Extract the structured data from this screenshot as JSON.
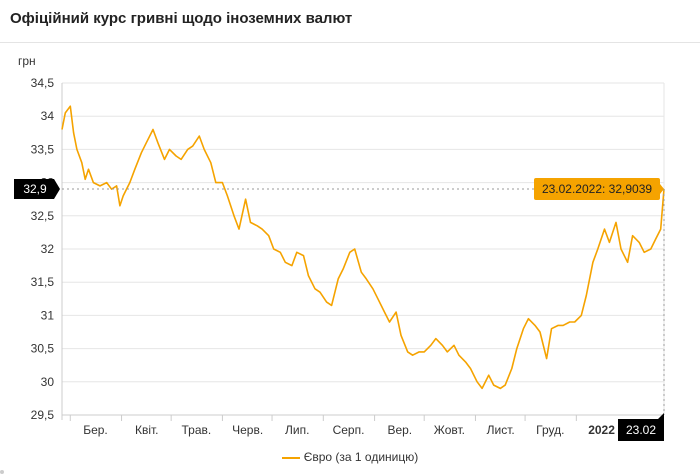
{
  "page_title": "Офіційний курс гривні щодо іноземних валют",
  "colors": {
    "series": "#f5a300",
    "grid": "#e6e6e6",
    "flag_bg": "#000000"
  },
  "chart_data": {
    "type": "line",
    "title": "Офіційний курс гривні щодо іноземних валют",
    "ylabel": "грн",
    "ylim": [
      29.5,
      34.5
    ],
    "yticks": [
      29.5,
      30,
      30.5,
      31,
      31.5,
      32,
      32.5,
      33,
      33.5,
      34,
      34.5
    ],
    "ytick_labels": [
      "29,5",
      "30",
      "30,5",
      "31",
      "31,5",
      "32",
      "32,5",
      "33",
      "33,5",
      "34",
      "34,5"
    ],
    "x_range": [
      "2021-02-24",
      "2022-02-23"
    ],
    "xticks": [
      {
        "label": "Бер.",
        "date": "2021-03-01",
        "bold": false
      },
      {
        "label": "Квіт.",
        "date": "2021-04-01",
        "bold": false
      },
      {
        "label": "Трав.",
        "date": "2021-05-01",
        "bold": false
      },
      {
        "label": "Черв.",
        "date": "2021-06-01",
        "bold": false
      },
      {
        "label": "Лип.",
        "date": "2021-07-01",
        "bold": false
      },
      {
        "label": "Серп.",
        "date": "2021-08-01",
        "bold": false
      },
      {
        "label": "Вер.",
        "date": "2021-09-01",
        "bold": false
      },
      {
        "label": "Жовт.",
        "date": "2021-10-01",
        "bold": false
      },
      {
        "label": "Лист.",
        "date": "2021-11-01",
        "bold": false
      },
      {
        "label": "Груд.",
        "date": "2021-12-01",
        "bold": false
      },
      {
        "label": "2022",
        "date": "2022-01-01",
        "bold": true
      }
    ],
    "grid": true,
    "legend_position": "bottom-center",
    "series": [
      {
        "name": "Євро (за 1 одиницю)",
        "color": "#f5a300",
        "points": [
          [
            "2021-02-24",
            33.8
          ],
          [
            "2021-02-26",
            34.05
          ],
          [
            "2021-03-01",
            34.15
          ],
          [
            "2021-03-03",
            33.75
          ],
          [
            "2021-03-05",
            33.5
          ],
          [
            "2021-03-08",
            33.3
          ],
          [
            "2021-03-10",
            33.05
          ],
          [
            "2021-03-12",
            33.2
          ],
          [
            "2021-03-15",
            33.0
          ],
          [
            "2021-03-19",
            32.95
          ],
          [
            "2021-03-23",
            33.0
          ],
          [
            "2021-03-26",
            32.9
          ],
          [
            "2021-03-29",
            32.95
          ],
          [
            "2021-03-31",
            32.65
          ],
          [
            "2021-04-02",
            32.8
          ],
          [
            "2021-04-06",
            33.0
          ],
          [
            "2021-04-09",
            33.2
          ],
          [
            "2021-04-13",
            33.45
          ],
          [
            "2021-04-16",
            33.6
          ],
          [
            "2021-04-20",
            33.8
          ],
          [
            "2021-04-23",
            33.6
          ],
          [
            "2021-04-27",
            33.35
          ],
          [
            "2021-04-30",
            33.5
          ],
          [
            "2021-05-04",
            33.4
          ],
          [
            "2021-05-07",
            33.35
          ],
          [
            "2021-05-11",
            33.5
          ],
          [
            "2021-05-14",
            33.55
          ],
          [
            "2021-05-18",
            33.7
          ],
          [
            "2021-05-21",
            33.5
          ],
          [
            "2021-05-25",
            33.3
          ],
          [
            "2021-05-28",
            33.0
          ],
          [
            "2021-06-01",
            33.0
          ],
          [
            "2021-06-04",
            32.8
          ],
          [
            "2021-06-08",
            32.5
          ],
          [
            "2021-06-11",
            32.3
          ],
          [
            "2021-06-15",
            32.75
          ],
          [
            "2021-06-18",
            32.4
          ],
          [
            "2021-06-22",
            32.35
          ],
          [
            "2021-06-25",
            32.3
          ],
          [
            "2021-06-29",
            32.2
          ],
          [
            "2021-07-02",
            32.0
          ],
          [
            "2021-07-06",
            31.95
          ],
          [
            "2021-07-09",
            31.8
          ],
          [
            "2021-07-13",
            31.75
          ],
          [
            "2021-07-16",
            31.95
          ],
          [
            "2021-07-20",
            31.9
          ],
          [
            "2021-07-23",
            31.6
          ],
          [
            "2021-07-27",
            31.4
          ],
          [
            "2021-07-30",
            31.35
          ],
          [
            "2021-08-03",
            31.2
          ],
          [
            "2021-08-06",
            31.15
          ],
          [
            "2021-08-10",
            31.55
          ],
          [
            "2021-08-13",
            31.7
          ],
          [
            "2021-08-17",
            31.95
          ],
          [
            "2021-08-20",
            32.0
          ],
          [
            "2021-08-24",
            31.65
          ],
          [
            "2021-08-27",
            31.55
          ],
          [
            "2021-08-31",
            31.4
          ],
          [
            "2021-09-03",
            31.25
          ],
          [
            "2021-09-07",
            31.05
          ],
          [
            "2021-09-10",
            30.9
          ],
          [
            "2021-09-14",
            31.05
          ],
          [
            "2021-09-17",
            30.7
          ],
          [
            "2021-09-21",
            30.45
          ],
          [
            "2021-09-24",
            30.4
          ],
          [
            "2021-09-28",
            30.45
          ],
          [
            "2021-10-01",
            30.45
          ],
          [
            "2021-10-05",
            30.55
          ],
          [
            "2021-10-08",
            30.65
          ],
          [
            "2021-10-12",
            30.55
          ],
          [
            "2021-10-15",
            30.45
          ],
          [
            "2021-10-19",
            30.55
          ],
          [
            "2021-10-22",
            30.4
          ],
          [
            "2021-10-26",
            30.3
          ],
          [
            "2021-10-29",
            30.2
          ],
          [
            "2021-11-02",
            30.0
          ],
          [
            "2021-11-05",
            29.9
          ],
          [
            "2021-11-09",
            30.1
          ],
          [
            "2021-11-12",
            29.95
          ],
          [
            "2021-11-16",
            29.9
          ],
          [
            "2021-11-19",
            29.95
          ],
          [
            "2021-11-23",
            30.2
          ],
          [
            "2021-11-26",
            30.5
          ],
          [
            "2021-11-30",
            30.8
          ],
          [
            "2021-12-03",
            30.95
          ],
          [
            "2021-12-07",
            30.85
          ],
          [
            "2021-12-10",
            30.75
          ],
          [
            "2021-12-14",
            30.35
          ],
          [
            "2021-12-17",
            30.8
          ],
          [
            "2021-12-21",
            30.85
          ],
          [
            "2021-12-24",
            30.85
          ],
          [
            "2021-12-28",
            30.9
          ],
          [
            "2021-12-31",
            30.9
          ],
          [
            "2022-01-04",
            31.0
          ],
          [
            "2022-01-07",
            31.3
          ],
          [
            "2022-01-11",
            31.8
          ],
          [
            "2022-01-14",
            32.0
          ],
          [
            "2022-01-18",
            32.3
          ],
          [
            "2022-01-21",
            32.1
          ],
          [
            "2022-01-25",
            32.4
          ],
          [
            "2022-01-28",
            32.0
          ],
          [
            "2022-02-01",
            31.8
          ],
          [
            "2022-02-04",
            32.2
          ],
          [
            "2022-02-08",
            32.1
          ],
          [
            "2022-02-11",
            31.95
          ],
          [
            "2022-02-15",
            32.0
          ],
          [
            "2022-02-18",
            32.15
          ],
          [
            "2022-02-21",
            32.3
          ],
          [
            "2022-02-23",
            32.9039
          ]
        ]
      }
    ],
    "highlight": {
      "date_label": "23.02",
      "value_label": "32,9",
      "tooltip": "23.02.2022: 32,9039",
      "date": "2022-02-23",
      "value": 32.9039
    }
  }
}
